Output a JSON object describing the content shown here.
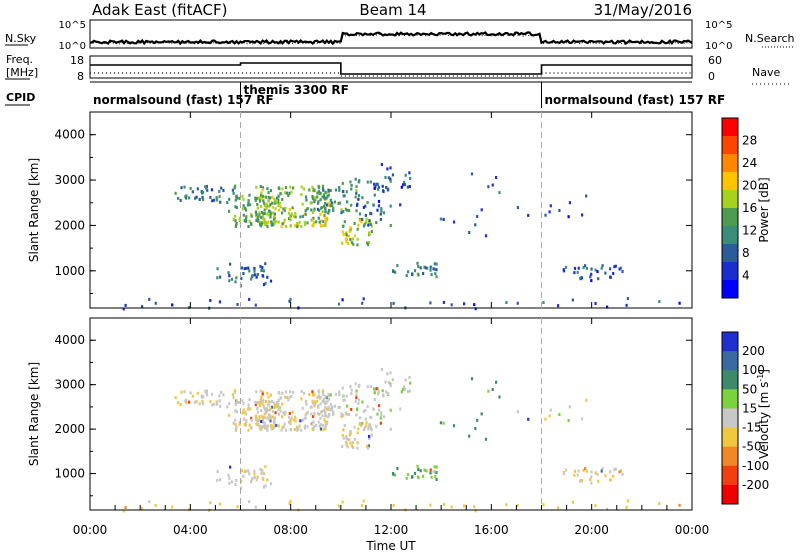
{
  "header": {
    "station": "Adak East (fitACF)",
    "beam": "Beam 14",
    "date": "31/May/2016"
  },
  "noise_panel": {
    "left_label": "N.Sky",
    "right_label": "N.Search",
    "left_ticks": [
      "10^5",
      "10^0"
    ],
    "right_ticks": [
      "10^5",
      "10^0"
    ]
  },
  "freq_panel": {
    "left_label_1": "Freq.",
    "left_label_2": "[MHz]",
    "right_label": "Nave",
    "left_ticks": [
      "18",
      "8"
    ],
    "right_ticks": [
      "60",
      "0"
    ]
  },
  "cpid": {
    "label": "CPID",
    "segments": [
      {
        "name": "normalsound (fast) 157 RF",
        "start_h": 0,
        "end_h": 6
      },
      {
        "name": "themis 3300 RF",
        "start_h": 6,
        "end_h": 18
      },
      {
        "name": "normalsound (fast) 157 RF",
        "start_h": 18,
        "end_h": 24
      }
    ]
  },
  "time_axis": {
    "label": "Time UT",
    "ticks": [
      "00:00",
      "04:00",
      "08:00",
      "12:00",
      "16:00",
      "20:00",
      "00:00"
    ]
  },
  "power_colorbar": {
    "label": "Power [dB]",
    "ticks": [
      "28",
      "24",
      "20",
      "16",
      "12",
      "8",
      "4"
    ],
    "colors": [
      "#ff0000",
      "#ff4400",
      "#ff8800",
      "#ffc400",
      "#a6d21e",
      "#4e9a4e",
      "#3c8c7a",
      "#2a5c9c",
      "#1a2ed0",
      "#0000ff"
    ]
  },
  "velocity_colorbar": {
    "label_main": "Velocity [m s",
    "label_sup": "-1",
    "label_end": "]",
    "ticks": [
      "200",
      "100",
      "50",
      "15",
      "-15",
      "-50",
      "-100",
      "-200"
    ],
    "colors": [
      "#2030d0",
      "#3a6aa0",
      "#3c8a6a",
      "#7ad23c",
      "#c8c8c8",
      "#f0c840",
      "#f08828",
      "#f04010",
      "#f00000"
    ]
  },
  "range_axis": {
    "label": "Slant Range [km]",
    "ticks": [
      "1000",
      "2000",
      "3000",
      "4000"
    ]
  },
  "chart_data": {
    "type": "heatmap",
    "title": "Adak East (fitACF) Beam 14 31/May/2016",
    "xlabel": "Time UT",
    "ylabel": "Slant Range [km]",
    "xlim_hours": [
      0,
      24
    ],
    "ylim_km": [
      180,
      4500
    ],
    "grid": false,
    "vertical_markers_h": [
      6,
      18
    ],
    "scatter_regions": [
      {
        "t0": 3.3,
        "t1": 5.8,
        "r0": 2500,
        "r1": 2900,
        "power": 10,
        "velocity": -10,
        "density": 0.35
      },
      {
        "t0": 5.5,
        "t1": 7.5,
        "r0": 2000,
        "r1": 2700,
        "power": 14,
        "velocity": -10,
        "density": 0.55
      },
      {
        "t0": 6.5,
        "t1": 9.5,
        "r0": 2000,
        "r1": 2900,
        "power": 16,
        "velocity": -5,
        "density": 0.6
      },
      {
        "t0": 9.0,
        "t1": 10.6,
        "r0": 2300,
        "r1": 3000,
        "power": 12,
        "velocity": 0,
        "density": 0.45
      },
      {
        "t0": 10.0,
        "t1": 11.2,
        "r0": 1600,
        "r1": 2200,
        "power": 18,
        "velocity": -10,
        "density": 0.55
      },
      {
        "t0": 10.5,
        "t1": 12.0,
        "r0": 2000,
        "r1": 3100,
        "power": 8,
        "velocity": 5,
        "density": 0.25
      },
      {
        "t0": 11.3,
        "t1": 12.8,
        "r0": 2300,
        "r1": 3400,
        "power": 6,
        "velocity": 10,
        "density": 0.12
      },
      {
        "t0": 5.0,
        "t1": 7.3,
        "r0": 700,
        "r1": 1200,
        "power": 8,
        "velocity": -10,
        "density": 0.3
      },
      {
        "t0": 12.0,
        "t1": 13.8,
        "r0": 900,
        "r1": 1200,
        "power": 10,
        "velocity": 30,
        "density": 0.45
      },
      {
        "t0": 18.8,
        "t1": 21.2,
        "r0": 800,
        "r1": 1150,
        "power": 6,
        "velocity": -10,
        "density": 0.35
      },
      {
        "t0": 13.8,
        "t1": 16.5,
        "r0": 1800,
        "r1": 3200,
        "power": 6,
        "velocity": 40,
        "density": 0.03
      },
      {
        "t0": 17.0,
        "t1": 20.5,
        "r0": 2200,
        "r1": 3000,
        "power": 6,
        "velocity": 0,
        "density": 0.03
      },
      {
        "t0": 0.0,
        "t1": 24.0,
        "r0": 180,
        "r1": 420,
        "power": 5,
        "velocity": -30,
        "density": 0.06
      }
    ]
  }
}
